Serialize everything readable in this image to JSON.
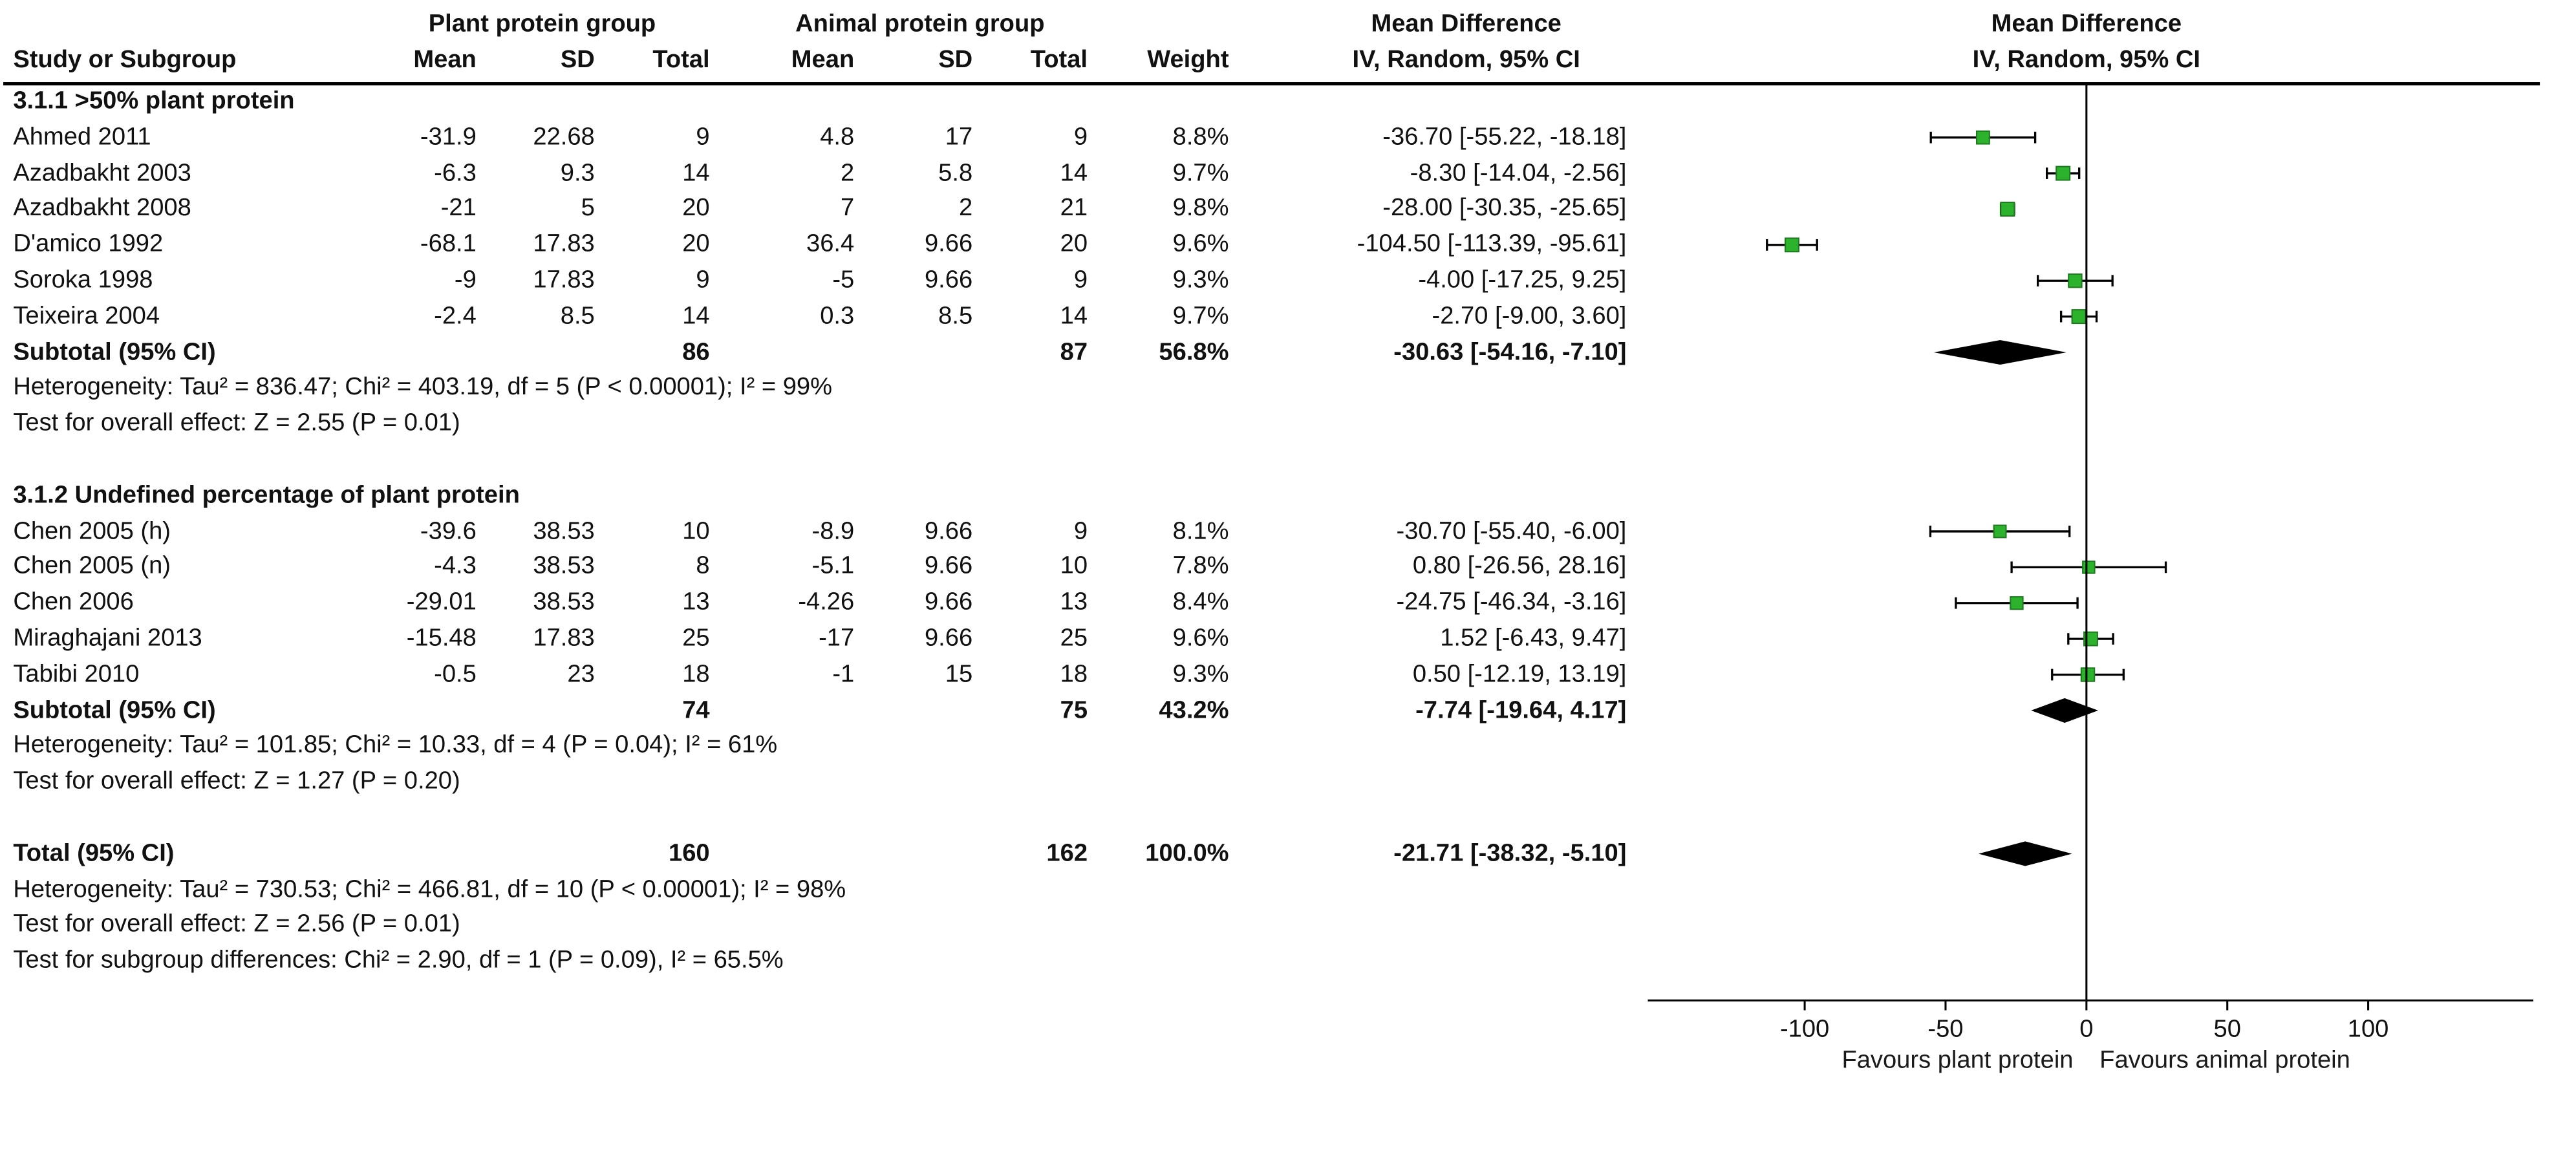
{
  "chart_data": {
    "type": "forest",
    "effect_label": "Mean Difference",
    "method_label": "IV, Random, 95% CI",
    "columns": {
      "study": "Study or Subgroup",
      "group1_header": "Plant protein group",
      "group2_header": "Animal protein group",
      "mean": "Mean",
      "sd": "SD",
      "total": "Total",
      "weight": "Weight",
      "effect_text_header": "Mean Difference",
      "effect_plot_header": "Mean Difference",
      "method": "IV, Random, 95% CI"
    },
    "axis": {
      "ticks": [
        -100,
        -50,
        0,
        50,
        100
      ],
      "xlim": [
        -155,
        160
      ],
      "favours_left": "Favours plant protein",
      "favours_right": "Favours animal protein"
    },
    "colors": {
      "marker": "#2cb22c",
      "marker_border": "#1e7a1e",
      "diamond": "#000000",
      "line": "#000000"
    },
    "subgroups": [
      {
        "label": "3.1.1 >50% plant protein",
        "studies": [
          {
            "name": "Ahmed 2011",
            "mean1": "-31.9",
            "sd1": "22.68",
            "n1": "9",
            "mean2": "4.8",
            "sd2": "17",
            "n2": "9",
            "weight": "8.8%",
            "md_text": "-36.70 [-55.22, -18.18]",
            "est": -36.7,
            "lo": -55.22,
            "hi": -18.18
          },
          {
            "name": "Azadbakht 2003",
            "mean1": "-6.3",
            "sd1": "9.3",
            "n1": "14",
            "mean2": "2",
            "sd2": "5.8",
            "n2": "14",
            "weight": "9.7%",
            "md_text": "-8.30 [-14.04, -2.56]",
            "est": -8.3,
            "lo": -14.04,
            "hi": -2.56
          },
          {
            "name": "Azadbakht 2008",
            "mean1": "-21",
            "sd1": "5",
            "n1": "20",
            "mean2": "7",
            "sd2": "2",
            "n2": "21",
            "weight": "9.8%",
            "md_text": "-28.00 [-30.35, -25.65]",
            "est": -28,
            "lo": -30.35,
            "hi": -25.65
          },
          {
            "name": "D'amico 1992",
            "mean1": "-68.1",
            "sd1": "17.83",
            "n1": "20",
            "mean2": "36.4",
            "sd2": "9.66",
            "n2": "20",
            "weight": "9.6%",
            "md_text": "-104.50 [-113.39, -95.61]",
            "est": -104.5,
            "lo": -113.39,
            "hi": -95.61
          },
          {
            "name": "Soroka 1998",
            "mean1": "-9",
            "sd1": "17.83",
            "n1": "9",
            "mean2": "-5",
            "sd2": "9.66",
            "n2": "9",
            "weight": "9.3%",
            "md_text": "-4.00 [-17.25, 9.25]",
            "est": -4,
            "lo": -17.25,
            "hi": 9.25
          },
          {
            "name": "Teixeira 2004",
            "mean1": "-2.4",
            "sd1": "8.5",
            "n1": "14",
            "mean2": "0.3",
            "sd2": "8.5",
            "n2": "14",
            "weight": "9.7%",
            "md_text": "-2.70 [-9.00, 3.60]",
            "est": -2.7,
            "lo": -9,
            "hi": 3.6
          }
        ],
        "subtotal": {
          "label": "Subtotal (95% CI)",
          "n1": "86",
          "n2": "87",
          "weight": "56.8%",
          "md_text": "-30.63 [-54.16, -7.10]",
          "est": -30.63,
          "lo": -54.16,
          "hi": -7.1
        },
        "notes": [
          "Heterogeneity: Tau² = 836.47; Chi² = 403.19, df = 5 (P < 0.00001); I² = 99%",
          "Test for overall effect: Z = 2.55 (P = 0.01)"
        ]
      },
      {
        "label": "3.1.2 Undefined percentage of plant protein",
        "studies": [
          {
            "name": "Chen 2005 (h)",
            "mean1": "-39.6",
            "sd1": "38.53",
            "n1": "10",
            "mean2": "-8.9",
            "sd2": "9.66",
            "n2": "9",
            "weight": "8.1%",
            "md_text": "-30.70 [-55.40, -6.00]",
            "est": -30.7,
            "lo": -55.4,
            "hi": -6
          },
          {
            "name": "Chen 2005 (n)",
            "mean1": "-4.3",
            "sd1": "38.53",
            "n1": "8",
            "mean2": "-5.1",
            "sd2": "9.66",
            "n2": "10",
            "weight": "7.8%",
            "md_text": "0.80 [-26.56, 28.16]",
            "est": 0.8,
            "lo": -26.56,
            "hi": 28.16
          },
          {
            "name": "Chen 2006",
            "mean1": "-29.01",
            "sd1": "38.53",
            "n1": "13",
            "mean2": "-4.26",
            "sd2": "9.66",
            "n2": "13",
            "weight": "8.4%",
            "md_text": "-24.75 [-46.34, -3.16]",
            "est": -24.75,
            "lo": -46.34,
            "hi": -3.16
          },
          {
            "name": "Miraghajani 2013",
            "mean1": "-15.48",
            "sd1": "17.83",
            "n1": "25",
            "mean2": "-17",
            "sd2": "9.66",
            "n2": "25",
            "weight": "9.6%",
            "md_text": "1.52 [-6.43, 9.47]",
            "est": 1.52,
            "lo": -6.43,
            "hi": 9.47
          },
          {
            "name": "Tabibi 2010",
            "mean1": "-0.5",
            "sd1": "23",
            "n1": "18",
            "mean2": "-1",
            "sd2": "15",
            "n2": "18",
            "weight": "9.3%",
            "md_text": "0.50 [-12.19, 13.19]",
            "est": 0.5,
            "lo": -12.19,
            "hi": 13.19
          }
        ],
        "subtotal": {
          "label": "Subtotal (95% CI)",
          "n1": "74",
          "n2": "75",
          "weight": "43.2%",
          "md_text": "-7.74 [-19.64, 4.17]",
          "est": -7.74,
          "lo": -19.64,
          "hi": 4.17
        },
        "notes": [
          "Heterogeneity: Tau² = 101.85; Chi² = 10.33, df = 4 (P = 0.04); I² = 61%",
          "Test for overall effect: Z = 1.27 (P = 0.20)"
        ]
      }
    ],
    "total": {
      "label": "Total (95% CI)",
      "n1": "160",
      "n2": "162",
      "weight": "100.0%",
      "md_text": "-21.71 [-38.32, -5.10]",
      "est": -21.71,
      "lo": -38.32,
      "hi": -5.1
    },
    "total_notes": [
      "Heterogeneity: Tau² = 730.53; Chi² = 466.81, df = 10 (P < 0.00001); I² = 98%",
      "Test for overall effect: Z = 2.56 (P = 0.01)",
      "Test for subgroup differences: Chi² = 2.90, df = 1 (P = 0.09), I² = 65.5%"
    ]
  }
}
